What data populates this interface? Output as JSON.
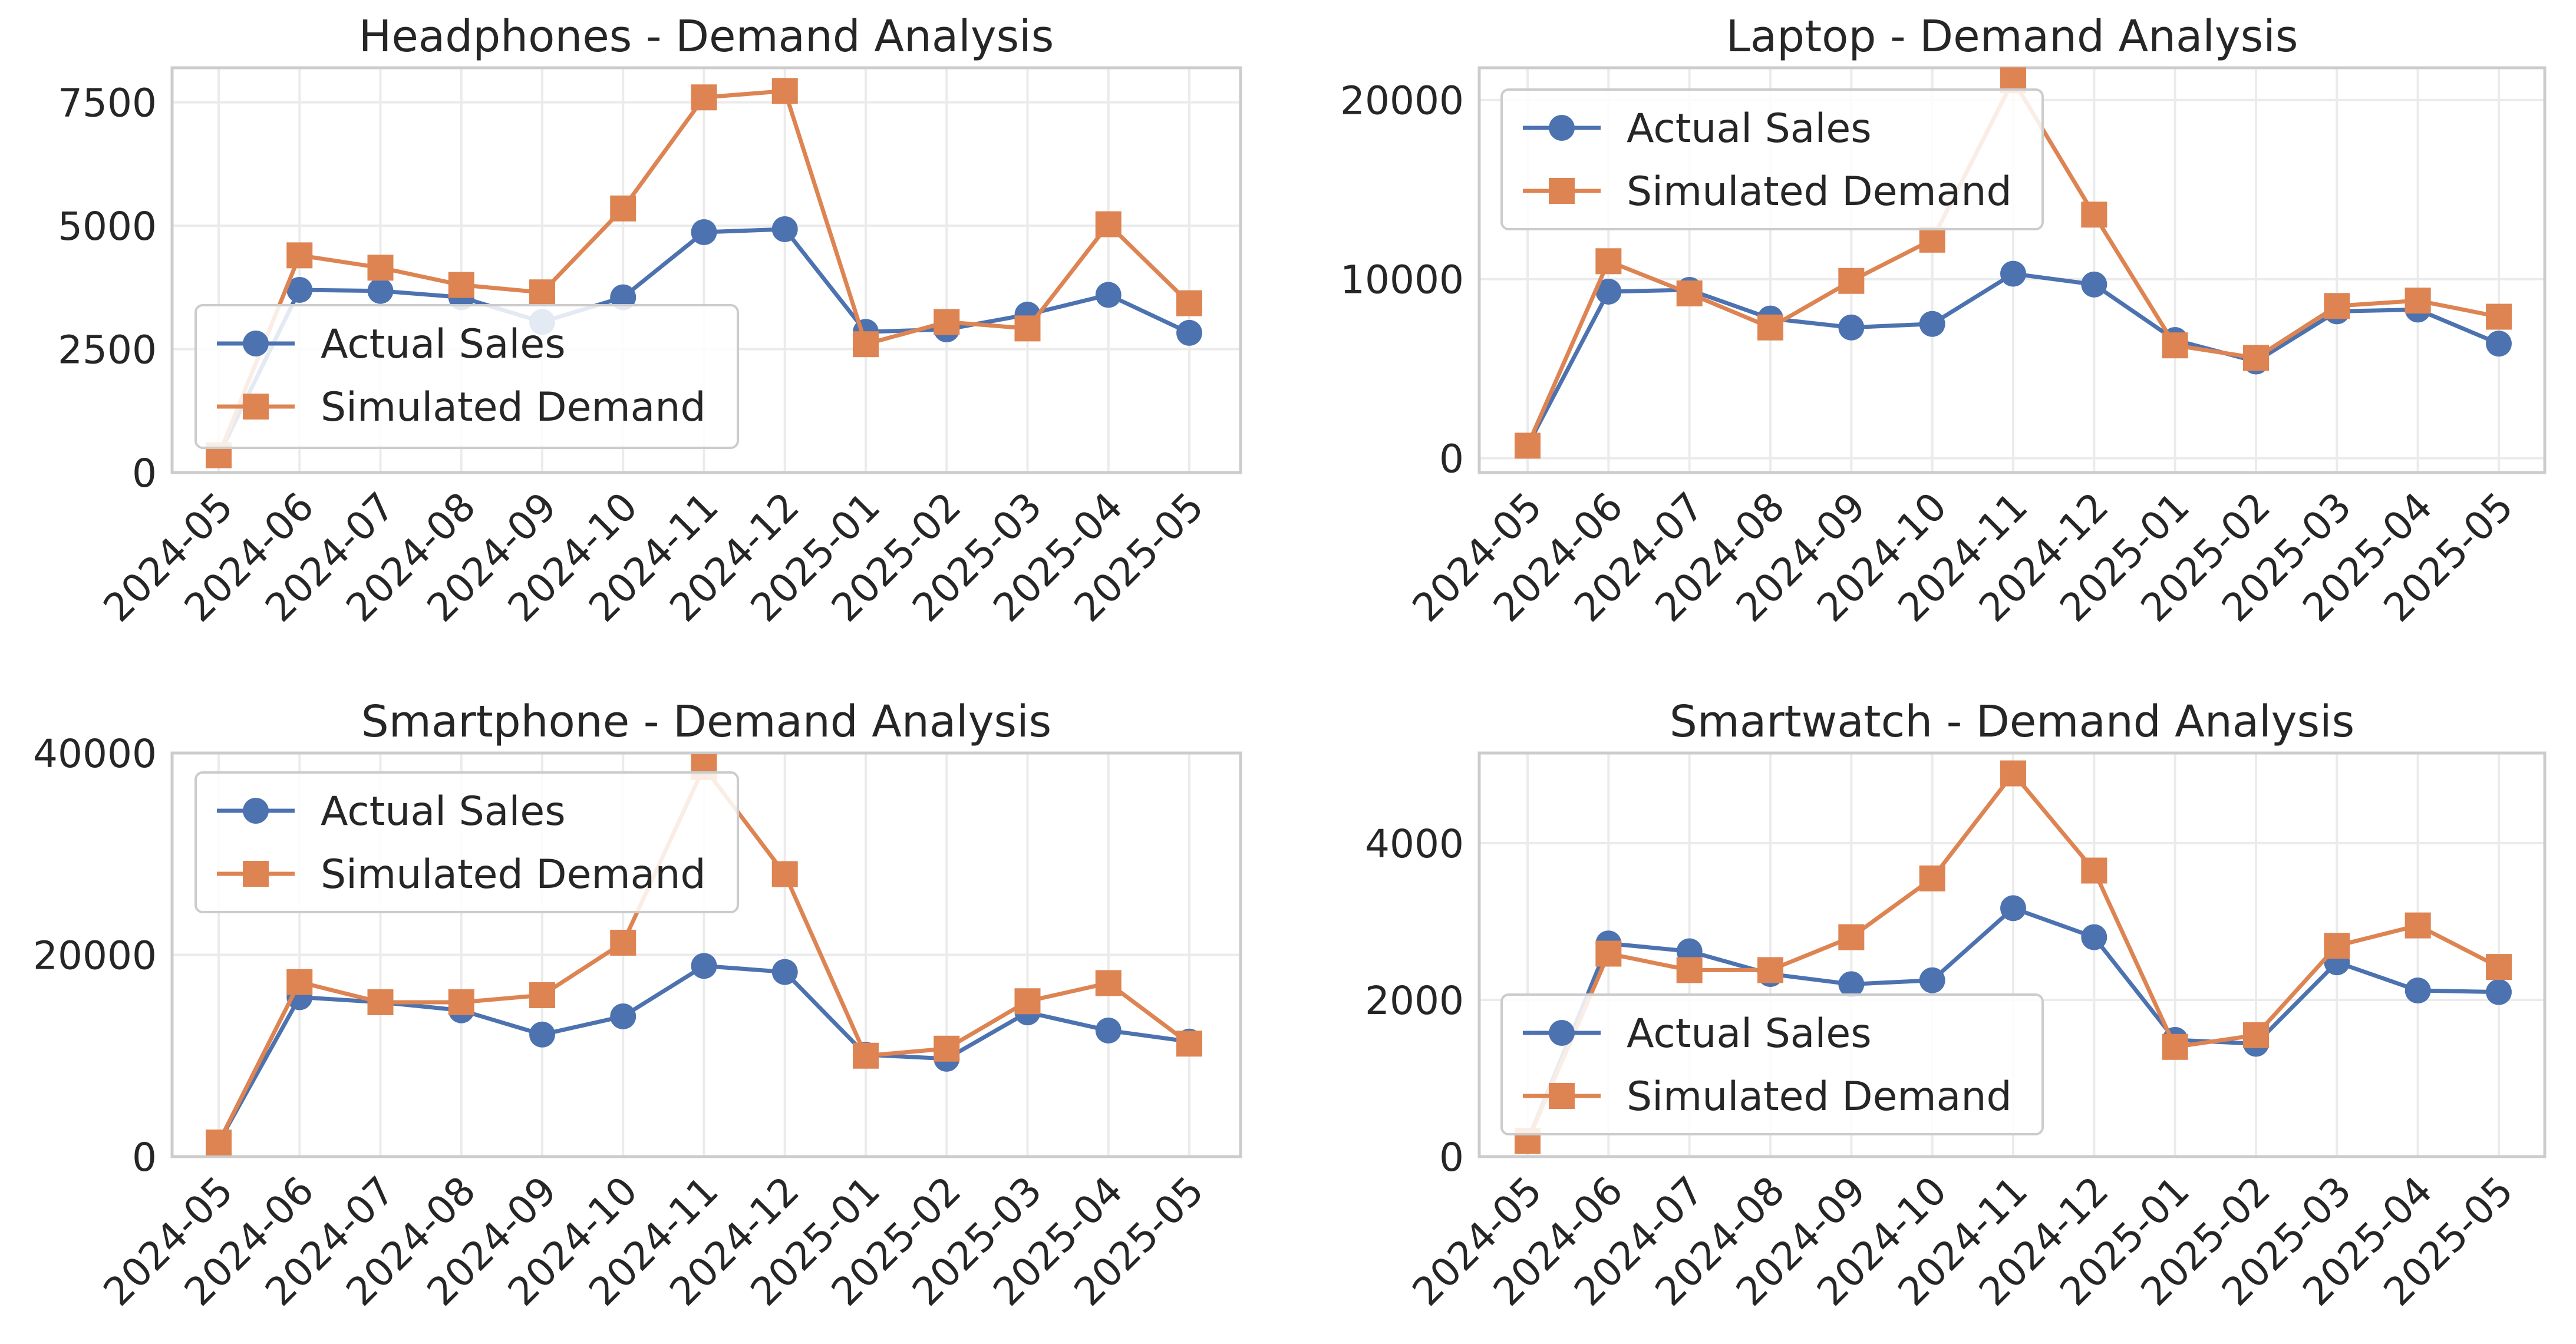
{
  "figure": {
    "background": "#ffffff"
  },
  "colors": {
    "actual": "#4c72b0",
    "simulated": "#dd8452",
    "grid": "#ebebeb",
    "spine": "#cccccc",
    "text": "#262626"
  },
  "chart_data": [
    {
      "type": "line",
      "title": "Headphones - Demand Analysis",
      "xlabel": "",
      "ylabel": "",
      "categories": [
        "2024-05",
        "2024-06",
        "2024-07",
        "2024-08",
        "2024-09",
        "2024-10",
        "2024-11",
        "2024-12",
        "2025-01",
        "2025-02",
        "2025-03",
        "2025-04",
        "2025-05"
      ],
      "ylim": [
        0,
        8200
      ],
      "yticks": [
        0,
        2500,
        5000,
        7500
      ],
      "grid": true,
      "legend_position": "lower left",
      "series": [
        {
          "name": "Actual Sales",
          "marker": "circle",
          "values": [
            350,
            3700,
            3680,
            3550,
            3050,
            3550,
            4870,
            4930,
            2850,
            2900,
            3200,
            3600,
            2830
          ]
        },
        {
          "name": "Simulated Demand",
          "marker": "square",
          "values": [
            350,
            4400,
            4150,
            3800,
            3650,
            5350,
            7600,
            7730,
            2600,
            3050,
            2920,
            5030,
            3430
          ]
        }
      ]
    },
    {
      "type": "line",
      "title": "Laptop - Demand Analysis",
      "xlabel": "",
      "ylabel": "",
      "categories": [
        "2024-05",
        "2024-06",
        "2024-07",
        "2024-08",
        "2024-09",
        "2024-10",
        "2024-11",
        "2024-12",
        "2025-01",
        "2025-02",
        "2025-03",
        "2025-04",
        "2025-05"
      ],
      "ylim": [
        -800,
        21800
      ],
      "yticks": [
        0,
        10000,
        20000
      ],
      "grid": true,
      "legend_position": "upper left",
      "series": [
        {
          "name": "Actual Sales",
          "marker": "circle",
          "values": [
            700,
            9300,
            9400,
            7800,
            7300,
            7500,
            10300,
            9700,
            6600,
            5400,
            8200,
            8300,
            6400
          ]
        },
        {
          "name": "Simulated Demand",
          "marker": "square",
          "values": [
            700,
            11000,
            9200,
            7300,
            9900,
            12200,
            21100,
            13600,
            6300,
            5600,
            8500,
            8800,
            7900
          ]
        }
      ]
    },
    {
      "type": "line",
      "title": "Smartphone - Demand Analysis",
      "xlabel": "",
      "ylabel": "",
      "categories": [
        "2024-05",
        "2024-06",
        "2024-07",
        "2024-08",
        "2024-09",
        "2024-10",
        "2024-11",
        "2024-12",
        "2025-01",
        "2025-02",
        "2025-03",
        "2025-04",
        "2025-05"
      ],
      "ylim": [
        0,
        40000
      ],
      "yticks": [
        0,
        20000,
        40000
      ],
      "grid": true,
      "legend_position": "upper left",
      "series": [
        {
          "name": "Actual Sales",
          "marker": "circle",
          "values": [
            1400,
            15800,
            15300,
            14500,
            12100,
            13900,
            18900,
            18300,
            10100,
            9700,
            14300,
            12500,
            11400
          ]
        },
        {
          "name": "Simulated Demand",
          "marker": "square",
          "values": [
            1400,
            17300,
            15300,
            15300,
            16000,
            21200,
            38600,
            28000,
            10000,
            10700,
            15400,
            17200,
            11200
          ]
        }
      ]
    },
    {
      "type": "line",
      "title": "Smartwatch - Demand Analysis",
      "xlabel": "",
      "ylabel": "",
      "categories": [
        "2024-05",
        "2024-06",
        "2024-07",
        "2024-08",
        "2024-09",
        "2024-10",
        "2024-11",
        "2024-12",
        "2025-01",
        "2025-02",
        "2025-03",
        "2025-04",
        "2025-05"
      ],
      "ylim": [
        0,
        5150
      ],
      "yticks": [
        0,
        2000,
        4000
      ],
      "grid": true,
      "legend_position": "lower left",
      "series": [
        {
          "name": "Actual Sales",
          "marker": "circle",
          "values": [
            200,
            2720,
            2620,
            2330,
            2200,
            2250,
            3170,
            2800,
            1490,
            1440,
            2480,
            2120,
            2100
          ]
        },
        {
          "name": "Simulated Demand",
          "marker": "square",
          "values": [
            200,
            2590,
            2380,
            2380,
            2800,
            3550,
            4890,
            3650,
            1400,
            1550,
            2690,
            2950,
            2420
          ]
        }
      ]
    }
  ]
}
